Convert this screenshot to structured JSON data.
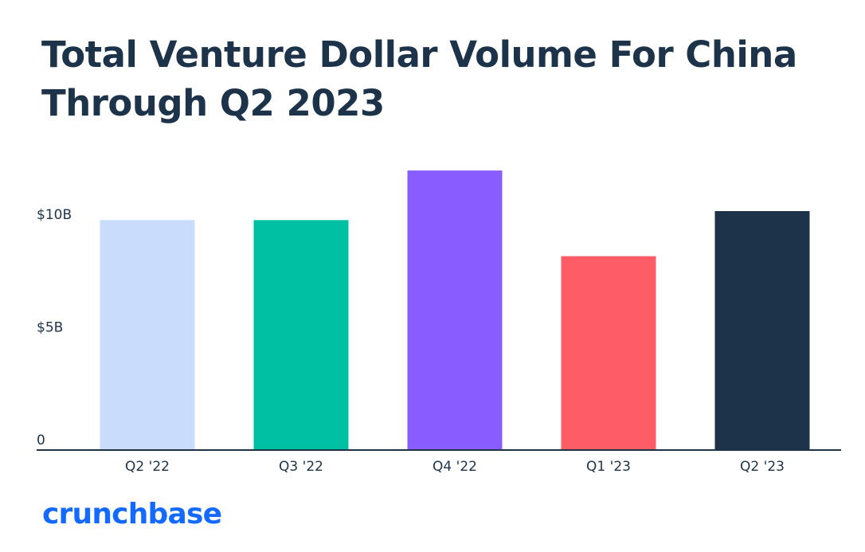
{
  "title_lines": [
    "Total Venture Dollar Volume For China",
    "Through Q2 2023"
  ],
  "brand": "crunchbase",
  "colors": {
    "text": "#1c3349",
    "axis": "#1c3349",
    "brand": "#146aff"
  },
  "chart_data": {
    "type": "bar",
    "title": "Total Venture Dollar Volume For China Through Q2 2023",
    "xlabel": "",
    "ylabel": "",
    "categories": [
      "Q2 '22",
      "Q3 '22",
      "Q4 '22",
      "Q1 '23",
      "Q2 '23"
    ],
    "values": [
      10.2,
      10.2,
      12.4,
      8.6,
      10.6
    ],
    "unit": "$B",
    "bar_colors": [
      "#c9dcfc",
      "#00c0a4",
      "#885cff",
      "#ff5d66",
      "#1c3349"
    ],
    "yticks": [
      {
        "value": 0,
        "label": "0"
      },
      {
        "value": 5,
        "label": "$5B"
      },
      {
        "value": 10,
        "label": "$10B"
      }
    ],
    "ylim": [
      0,
      13.2
    ],
    "grid": false,
    "legend": "none"
  }
}
